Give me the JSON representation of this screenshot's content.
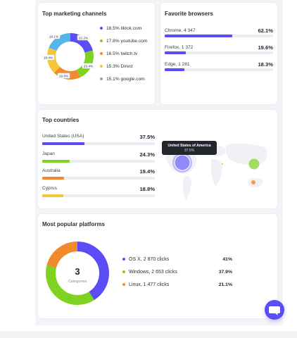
{
  "marketing": {
    "title": "Top marketing channels",
    "items": [
      {
        "label": "18.5% tiktok.com",
        "color": "#5b4cf5"
      },
      {
        "label": "17.8% youtube.com",
        "color": "#7ed321"
      },
      {
        "label": "16.5% twitch.tv",
        "color": "#f08a2c"
      },
      {
        "label": "15.3% Direct",
        "color": "#f5c53a"
      },
      {
        "label": "15.1% google.com",
        "color": "#54b6e8"
      }
    ],
    "donut_labels": [
      "18.1%",
      "22.2%",
      "23.4%",
      "19.8%",
      "18.4%"
    ]
  },
  "browsers": {
    "title": "Favorite browsers",
    "items": [
      {
        "label": "Chrome, 4 347",
        "pct": "62.1%",
        "value": 62.1
      },
      {
        "label": "Firefox, 1 372",
        "pct": "19.6%",
        "value": 19.6
      },
      {
        "label": "Edge, 1 281",
        "pct": "18.3%",
        "value": 18.3
      }
    ],
    "color": "#5b4cf5"
  },
  "countries": {
    "title": "Top countries",
    "items": [
      {
        "label": "United States (USA)",
        "pct": "37.5%",
        "value": 37.5,
        "color": "#5b4cf5"
      },
      {
        "label": "Japan",
        "pct": "24.3%",
        "value": 24.3,
        "color": "#7ed321"
      },
      {
        "label": "Australia",
        "pct": "19.4%",
        "value": 19.4,
        "color": "#f08a2c"
      },
      {
        "label": "Cyprus",
        "pct": "18.8%",
        "value": 18.8,
        "color": "#f5c53a"
      }
    ],
    "tooltip": {
      "title": "United States of America",
      "value": "37.5%"
    }
  },
  "platforms": {
    "title": "Most popular platforms",
    "center_value": "3",
    "center_label": "Categories",
    "items": [
      {
        "label": "OS X, 2 870 clicks",
        "pct": "41%",
        "value": 41,
        "color": "#5b4cf5"
      },
      {
        "label": "Windows, 2 653 clicks",
        "pct": "37.9%",
        "value": 37.9,
        "color": "#7ed321"
      },
      {
        "label": "Linux, 1 477 clicks",
        "pct": "21.1%",
        "value": 21.1,
        "color": "#f08a2c"
      }
    ]
  }
}
